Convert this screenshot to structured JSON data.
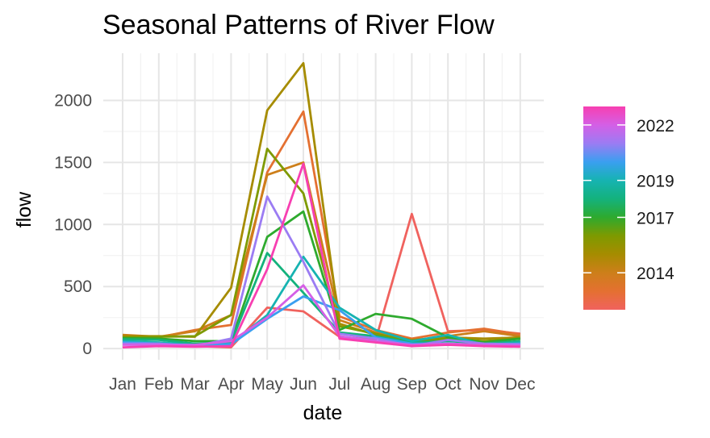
{
  "chart_data": {
    "type": "line",
    "title": "Seasonal Patterns of River Flow",
    "xlabel": "date",
    "ylabel": "flow",
    "categories": [
      "Jan",
      "Feb",
      "Mar",
      "Apr",
      "May",
      "Jun",
      "Jul",
      "Aug",
      "Sep",
      "Oct",
      "Nov",
      "Dec"
    ],
    "ylim": [
      -90,
      2380
    ],
    "y_ticks": [
      0,
      500,
      1000,
      1500,
      2000
    ],
    "grid": true,
    "legend": {
      "type": "colorbar",
      "placement": "right",
      "range": [
        2012,
        2023
      ],
      "ticks": [
        2014,
        2017,
        2019,
        2022
      ]
    },
    "series": [
      {
        "year": 2012,
        "color": "#f0625e",
        "values": [
          55,
          45,
          20,
          10,
          330,
          300,
          95,
          70,
          1085,
          140,
          150,
          120
        ]
      },
      {
        "year": 2013,
        "color": "#e47031",
        "values": [
          80,
          90,
          150,
          190,
          1420,
          1910,
          260,
          150,
          80,
          130,
          160,
          115
        ]
      },
      {
        "year": 2014,
        "color": "#cd7f1a",
        "values": [
          110,
          95,
          140,
          270,
          1400,
          1500,
          230,
          130,
          60,
          100,
          140,
          100
        ]
      },
      {
        "year": 2015,
        "color": "#a68c00",
        "values": [
          100,
          100,
          95,
          490,
          1920,
          2300,
          200,
          110,
          70,
          90,
          80,
          90
        ]
      },
      {
        "year": 2016,
        "color": "#7e9a00",
        "values": [
          90,
          95,
          100,
          270,
          1610,
          1250,
          180,
          120,
          55,
          80,
          60,
          80
        ]
      },
      {
        "year": 2017,
        "color": "#2eaa2e",
        "values": [
          85,
          80,
          60,
          60,
          900,
          1105,
          150,
          280,
          240,
          90,
          50,
          80
        ]
      },
      {
        "year": 2018,
        "color": "#14b27c",
        "values": [
          75,
          70,
          40,
          50,
          770,
          450,
          130,
          100,
          50,
          60,
          40,
          60
        ]
      },
      {
        "year": 2019,
        "color": "#16b3b1",
        "values": [
          60,
          50,
          30,
          40,
          270,
          740,
          330,
          150,
          60,
          110,
          30,
          50
        ]
      },
      {
        "year": 2020,
        "color": "#3a9ff0",
        "values": [
          50,
          40,
          25,
          35,
          240,
          420,
          310,
          90,
          40,
          40,
          25,
          40
        ]
      },
      {
        "year": 2021,
        "color": "#9b7cf3",
        "values": [
          40,
          40,
          20,
          80,
          1225,
          700,
          120,
          80,
          20,
          70,
          40,
          35
        ]
      },
      {
        "year": 2022,
        "color": "#d45fe6",
        "values": [
          30,
          30,
          30,
          60,
          250,
          510,
          100,
          60,
          30,
          40,
          30,
          25
        ]
      },
      {
        "year": 2023,
        "color": "#f73fb1",
        "values": [
          10,
          20,
          15,
          20,
          640,
          1490,
          80,
          50,
          20,
          30,
          20,
          15
        ]
      }
    ]
  }
}
